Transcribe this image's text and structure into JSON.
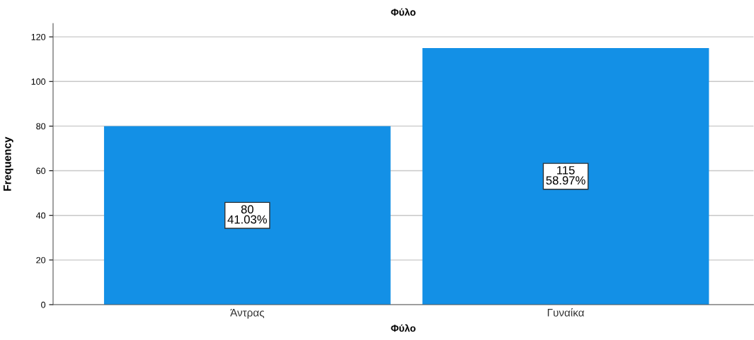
{
  "chart_data": {
    "type": "bar",
    "title": "Φύλο",
    "xlabel": "Φύλο",
    "ylabel": "Frequency",
    "categories": [
      "Άντρας",
      "Γυναίκα"
    ],
    "values": [
      80,
      115
    ],
    "value_labels": [
      "80\n41.03%",
      "115\n58.97%"
    ],
    "color": "#1390e6",
    "ylim": [
      0,
      126
    ],
    "yticks": [
      0,
      20,
      40,
      60,
      80,
      100,
      120
    ],
    "grid": "y"
  }
}
